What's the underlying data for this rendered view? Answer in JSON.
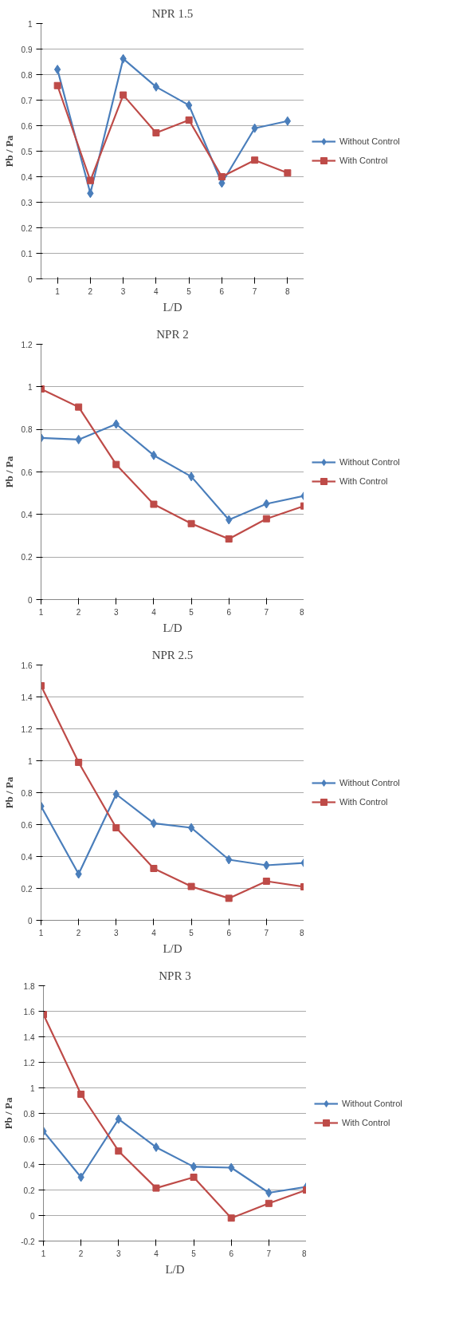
{
  "chart_data": [
    {
      "type": "line",
      "title": "NPR 1.5",
      "xlabel": "L/D",
      "ylabel": "Pb / Pa",
      "categories": [
        "1",
        "2",
        "3",
        "4",
        "5",
        "6",
        "7",
        "8"
      ],
      "ylim": [
        0,
        1
      ],
      "yticks": [
        0,
        0.1,
        0.2,
        0.3,
        0.4,
        0.5,
        0.6,
        0.7,
        0.8,
        0.9,
        1
      ],
      "grid": "y",
      "legend": "right",
      "series": [
        {
          "name": "Without Control",
          "color": "#4a7ebb",
          "marker": "diamond",
          "values": [
            0.82,
            0.335,
            0.862,
            0.752,
            0.68,
            0.375,
            0.59,
            0.618
          ]
        },
        {
          "name": "With Control",
          "color": "#be4b48",
          "marker": "square",
          "values": [
            0.757,
            0.385,
            0.72,
            0.572,
            0.622,
            0.4,
            0.465,
            0.415
          ]
        }
      ]
    },
    {
      "type": "line",
      "title": "NPR 2",
      "xlabel": "L/D",
      "ylabel": "Pb / Pa",
      "x": [
        1,
        2,
        3,
        4,
        5,
        6,
        7,
        8
      ],
      "xlim": [
        1,
        8
      ],
      "xticks": [
        1,
        2,
        3,
        4,
        5,
        6,
        7,
        8
      ],
      "ylim": [
        0,
        1.2
      ],
      "yticks": [
        0,
        0.2,
        0.4,
        0.6,
        0.8,
        1,
        1.2
      ],
      "grid": "y",
      "legend": "right",
      "series": [
        {
          "name": "Without Control",
          "color": "#4a7ebb",
          "marker": "diamond",
          "values": [
            0.76,
            0.752,
            0.825,
            0.678,
            0.578,
            0.375,
            0.45,
            0.487
          ]
        },
        {
          "name": "With Control",
          "color": "#be4b48",
          "marker": "square",
          "values": [
            0.99,
            0.905,
            0.635,
            0.448,
            0.357,
            0.285,
            0.38,
            0.44
          ]
        }
      ]
    },
    {
      "type": "line",
      "title": "NPR 2.5",
      "xlabel": "L/D",
      "ylabel": "Pb / Pa",
      "x": [
        1,
        2,
        3,
        4,
        5,
        6,
        7,
        8
      ],
      "xlim": [
        1,
        8
      ],
      "xticks": [
        1,
        2,
        3,
        4,
        5,
        6,
        7,
        8
      ],
      "ylim": [
        0,
        1.6
      ],
      "yticks": [
        0,
        0.2,
        0.4,
        0.6,
        0.8,
        1,
        1.2,
        1.4,
        1.6
      ],
      "grid": "y",
      "legend": "right",
      "series": [
        {
          "name": "Without Control",
          "color": "#4a7ebb",
          "marker": "diamond",
          "values": [
            0.715,
            0.29,
            0.79,
            0.608,
            0.58,
            0.38,
            0.345,
            0.36
          ]
        },
        {
          "name": "With Control",
          "color": "#be4b48",
          "marker": "square",
          "values": [
            1.47,
            0.99,
            0.58,
            0.325,
            0.212,
            0.138,
            0.245,
            0.21
          ]
        }
      ]
    },
    {
      "type": "line",
      "title": "NPR 3",
      "xlabel": "L/D",
      "ylabel": "Pb / Pa",
      "x": [
        1,
        2,
        3,
        4,
        5,
        6,
        7,
        8
      ],
      "xlim": [
        1,
        8
      ],
      "xticks": [
        1,
        2,
        3,
        4,
        5,
        6,
        7,
        8
      ],
      "ylim": [
        -0.2,
        1.8
      ],
      "yticks": [
        -0.2,
        0,
        0.2,
        0.4,
        0.6,
        0.8,
        1,
        1.2,
        1.4,
        1.6,
        1.8
      ],
      "grid": "y",
      "legend": "right",
      "series": [
        {
          "name": "Without Control",
          "color": "#4a7ebb",
          "marker": "diamond",
          "values": [
            0.66,
            0.3,
            0.755,
            0.535,
            0.382,
            0.375,
            0.178,
            0.225
          ]
        },
        {
          "name": "With Control",
          "color": "#be4b48",
          "marker": "square",
          "values": [
            1.575,
            0.95,
            0.505,
            0.215,
            0.3,
            -0.02,
            0.095,
            0.2
          ]
        }
      ]
    }
  ]
}
